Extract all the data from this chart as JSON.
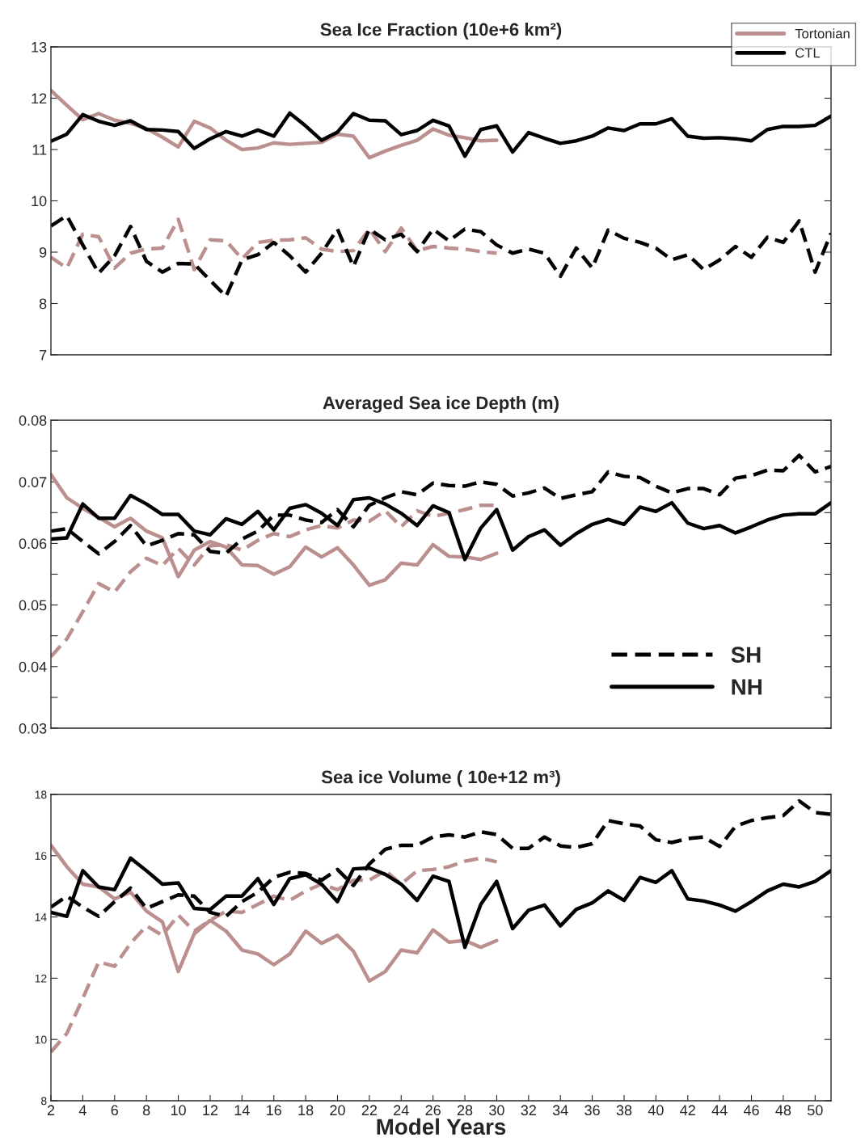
{
  "chart_data": [
    {
      "type": "line",
      "title": "Sea Ice Fraction (10e+6 km²)",
      "x": [
        2,
        3,
        4,
        5,
        6,
        7,
        8,
        9,
        10,
        11,
        12,
        13,
        14,
        15,
        16,
        17,
        18,
        19,
        20,
        21,
        22,
        23,
        24,
        25,
        26,
        27,
        28,
        29,
        30,
        31,
        32,
        33,
        34,
        35,
        36,
        37,
        38,
        39,
        40,
        41,
        42,
        43,
        44,
        45,
        46,
        47,
        48,
        49,
        50,
        51
      ],
      "xlim": [
        2,
        51
      ],
      "ylim": [
        7,
        13
      ],
      "yticks": [
        7,
        8,
        9,
        10,
        11,
        12,
        13
      ],
      "tick_labels": "y",
      "legend": "top right",
      "grid": false,
      "series": [
        {
          "name": "Tortonian",
          "color": "#bc8f8f",
          "line_style": "solid",
          "x": [
            2,
            3,
            4,
            5,
            6,
            7,
            8,
            9,
            10,
            11,
            12,
            13,
            14,
            15,
            16,
            17,
            18,
            19,
            20,
            21,
            22,
            23,
            24,
            25,
            26,
            27,
            28,
            29,
            30
          ],
          "values": [
            12.15,
            11.86,
            11.58,
            11.7,
            11.57,
            11.51,
            11.41,
            11.24,
            11.05,
            11.55,
            11.42,
            11.18,
            11.0,
            11.03,
            11.13,
            11.1,
            11.12,
            11.14,
            11.3,
            11.26,
            10.84,
            10.97,
            11.08,
            11.18,
            11.4,
            11.28,
            11.23,
            11.17,
            11.18
          ]
        },
        {
          "name": "CTL",
          "color": "#000000",
          "line_style": "solid",
          "values": [
            11.16,
            11.3,
            11.68,
            11.55,
            11.47,
            11.56,
            11.39,
            11.38,
            11.35,
            11.02,
            11.21,
            11.35,
            11.26,
            11.38,
            11.26,
            11.71,
            11.46,
            11.18,
            11.34,
            11.7,
            11.57,
            11.56,
            11.29,
            11.37,
            11.57,
            11.46,
            10.87,
            11.39,
            11.46,
            10.95,
            11.33,
            11.22,
            11.12,
            11.17,
            11.26,
            11.42,
            11.37,
            11.5,
            11.5,
            11.6,
            11.26,
            11.22,
            11.23,
            11.21,
            11.17,
            11.39,
            11.45,
            11.45,
            11.47,
            11.65
          ]
        },
        {
          "color": "#bc8f8f",
          "line_style": "dashed",
          "x": [
            2,
            3,
            4,
            5,
            6,
            7,
            8,
            9,
            10,
            11,
            12,
            13,
            14,
            15,
            16,
            17,
            18,
            19,
            20,
            21,
            22,
            23,
            24,
            25,
            26,
            27,
            28,
            29,
            30
          ],
          "values": [
            8.9,
            8.69,
            9.35,
            9.3,
            8.69,
            8.98,
            9.06,
            9.08,
            9.64,
            8.66,
            9.24,
            9.22,
            8.87,
            9.19,
            9.23,
            9.24,
            9.28,
            9.06,
            9.01,
            9.03,
            9.45,
            9.01,
            9.47,
            9.03,
            9.11,
            9.08,
            9.06,
            9.01,
            8.98
          ]
        },
        {
          "color": "#000000",
          "line_style": "dashed",
          "values": [
            9.51,
            9.71,
            9.14,
            8.59,
            8.93,
            9.5,
            8.82,
            8.61,
            8.78,
            8.77,
            8.45,
            8.14,
            8.85,
            8.95,
            9.19,
            8.93,
            8.61,
            8.98,
            9.45,
            8.72,
            9.45,
            9.24,
            9.35,
            9.01,
            9.45,
            9.22,
            9.45,
            9.4,
            9.14,
            8.98,
            9.06,
            8.98,
            8.53,
            9.08,
            8.69,
            9.43,
            9.27,
            9.19,
            9.08,
            8.85,
            8.95,
            8.66,
            8.85,
            9.11,
            8.9,
            9.29,
            9.19,
            9.61,
            8.61,
            9.37
          ]
        }
      ]
    },
    {
      "type": "line",
      "title": "Averaged Sea ice Depth (m)",
      "x": [
        2,
        3,
        4,
        5,
        6,
        7,
        8,
        9,
        10,
        11,
        12,
        13,
        14,
        15,
        16,
        17,
        18,
        19,
        20,
        21,
        22,
        23,
        24,
        25,
        26,
        27,
        28,
        29,
        30,
        31,
        32,
        33,
        34,
        35,
        36,
        37,
        38,
        39,
        40,
        41,
        42,
        43,
        44,
        45,
        46,
        47,
        48,
        49,
        50,
        51
      ],
      "xlim": [
        2,
        51
      ],
      "ylim": [
        0.03,
        0.08
      ],
      "yticks": [
        0.03,
        {
          "value": 0.035,
          "label": null
        },
        0.04,
        {
          "value": 0.045,
          "label": null
        },
        0.05,
        {
          "value": 0.055,
          "label": null
        },
        0.06,
        {
          "value": 0.065,
          "label": null
        },
        0.07,
        {
          "value": 0.075,
          "label": null
        },
        0.08
      ],
      "tick_labels": "y",
      "legend": "bottom right",
      "grid": false,
      "series": [
        {
          "color": "#bc8f8f",
          "line_style": "solid",
          "x": [
            2,
            3,
            4,
            5,
            6,
            7,
            8,
            9,
            10,
            11,
            12,
            13,
            14,
            15,
            16,
            17,
            18,
            19,
            20,
            21,
            22,
            23,
            24,
            25,
            26,
            27,
            28,
            29,
            30
          ],
          "values": [
            0.0712,
            0.0674,
            0.0657,
            0.0642,
            0.0627,
            0.0641,
            0.062,
            0.0609,
            0.0546,
            0.0589,
            0.0603,
            0.0594,
            0.0565,
            0.0564,
            0.055,
            0.0562,
            0.0594,
            0.0578,
            0.0593,
            0.0565,
            0.0532,
            0.0541,
            0.0568,
            0.0565,
            0.0598,
            0.0579,
            0.0578,
            0.0574,
            0.0584
          ]
        },
        {
          "color": "#bc8f8f",
          "line_style": "dashed",
          "x": [
            2,
            3,
            4,
            5,
            6,
            7,
            8,
            9,
            10,
            11,
            12,
            13,
            14,
            15,
            16,
            17,
            18,
            19,
            20,
            21,
            22,
            23,
            24,
            25,
            26,
            27,
            28,
            29,
            30
          ],
          "values": [
            0.0416,
            0.0445,
            0.0489,
            0.0535,
            0.0521,
            0.0554,
            0.0576,
            0.0564,
            0.0592,
            0.0565,
            0.0596,
            0.0598,
            0.0589,
            0.0605,
            0.0616,
            0.0611,
            0.0622,
            0.0629,
            0.0625,
            0.0638,
            0.0636,
            0.0653,
            0.0627,
            0.0653,
            0.0644,
            0.0649,
            0.0655,
            0.0662,
            0.0662
          ]
        },
        {
          "name": "SH",
          "color": "#000000",
          "line_style": "dashed",
          "values": [
            0.062,
            0.0624,
            0.0603,
            0.0583,
            0.0603,
            0.0629,
            0.0596,
            0.0605,
            0.0616,
            0.0614,
            0.0587,
            0.0584,
            0.0607,
            0.062,
            0.0646,
            0.0646,
            0.0638,
            0.0634,
            0.0655,
            0.0627,
            0.0662,
            0.0674,
            0.0684,
            0.0679,
            0.0698,
            0.0694,
            0.0693,
            0.07,
            0.0696,
            0.0677,
            0.0682,
            0.069,
            0.0673,
            0.0679,
            0.0684,
            0.0716,
            0.0709,
            0.0707,
            0.0693,
            0.0682,
            0.0689,
            0.0689,
            0.0679,
            0.0706,
            0.071,
            0.0719,
            0.0718,
            0.0743,
            0.0716,
            0.0725
          ]
        },
        {
          "name": "NH",
          "color": "#000000",
          "line_style": "solid",
          "values": [
            0.0607,
            0.0609,
            0.0664,
            0.0641,
            0.0641,
            0.0678,
            0.0664,
            0.0647,
            0.0647,
            0.062,
            0.0614,
            0.064,
            0.0631,
            0.0652,
            0.0622,
            0.0657,
            0.0663,
            0.0649,
            0.0629,
            0.0671,
            0.0674,
            0.0664,
            0.0649,
            0.0629,
            0.0661,
            0.065,
            0.0574,
            0.0625,
            0.0655,
            0.0589,
            0.0611,
            0.0622,
            0.0597,
            0.0616,
            0.0631,
            0.0639,
            0.0631,
            0.0659,
            0.0652,
            0.0666,
            0.0633,
            0.0624,
            0.0629,
            0.0617,
            0.0627,
            0.0638,
            0.0646,
            0.0648,
            0.0648,
            0.0666
          ]
        }
      ]
    },
    {
      "type": "line",
      "title": "Sea ice Volume ( 10e+12 m³)",
      "xlabel": "Model Years",
      "x": [
        2,
        3,
        4,
        5,
        6,
        7,
        8,
        9,
        10,
        11,
        12,
        13,
        14,
        15,
        16,
        17,
        18,
        19,
        20,
        21,
        22,
        23,
        24,
        25,
        26,
        27,
        28,
        29,
        30,
        31,
        32,
        33,
        34,
        35,
        36,
        37,
        38,
        39,
        40,
        41,
        42,
        43,
        44,
        45,
        46,
        47,
        48,
        49,
        50,
        51
      ],
      "xlim": [
        2,
        51
      ],
      "xticks": [
        2,
        4,
        6,
        8,
        10,
        12,
        14,
        16,
        18,
        20,
        22,
        24,
        26,
        28,
        30,
        32,
        34,
        36,
        38,
        40,
        42,
        44,
        46,
        48,
        50
      ],
      "ylim": [
        8,
        18
      ],
      "yticks": [
        8,
        10,
        12,
        14,
        16,
        18
      ],
      "grid": false,
      "series": [
        {
          "color": "#bc8f8f",
          "line_style": "solid",
          "x": [
            2,
            3,
            4,
            5,
            6,
            7,
            8,
            9,
            10,
            11,
            12,
            13,
            14,
            15,
            16,
            17,
            18,
            19,
            20,
            21,
            22,
            23,
            24,
            25,
            26,
            27,
            28,
            29,
            30
          ],
          "values": [
            16.34,
            15.64,
            15.07,
            14.98,
            14.59,
            14.81,
            14.19,
            13.84,
            12.22,
            13.45,
            13.89,
            13.54,
            12.92,
            12.79,
            12.44,
            12.79,
            13.54,
            13.14,
            13.4,
            12.88,
            11.91,
            12.22,
            12.92,
            12.83,
            13.58,
            13.18,
            13.23,
            13.01,
            13.23
          ]
        },
        {
          "color": "#bc8f8f",
          "line_style": "dashed",
          "x": [
            2,
            3,
            4,
            5,
            6,
            7,
            8,
            9,
            10,
            11,
            12,
            13,
            14,
            15,
            16,
            17,
            18,
            19,
            20,
            21,
            22,
            23,
            24,
            25,
            26,
            27,
            28,
            29,
            30
          ],
          "values": [
            9.59,
            10.2,
            11.34,
            12.53,
            12.39,
            13.14,
            13.71,
            13.4,
            14.06,
            13.54,
            13.89,
            14.19,
            14.15,
            14.41,
            14.68,
            14.54,
            14.85,
            15.07,
            14.89,
            15.2,
            15.2,
            15.51,
            15.07,
            15.51,
            15.55,
            15.64,
            15.82,
            15.92,
            15.8
          ]
        },
        {
          "color": "#000000",
          "line_style": "dashed",
          "values": [
            14.32,
            14.68,
            14.32,
            14.02,
            14.5,
            14.94,
            14.28,
            14.5,
            14.72,
            14.68,
            14.15,
            14.02,
            14.5,
            14.81,
            15.29,
            15.46,
            15.42,
            15.2,
            15.55,
            15.03,
            15.73,
            16.21,
            16.34,
            16.34,
            16.61,
            16.68,
            16.61,
            16.78,
            16.69,
            16.24,
            16.24,
            16.61,
            16.32,
            16.27,
            16.39,
            17.15,
            17.04,
            16.97,
            16.52,
            16.43,
            16.56,
            16.61,
            16.3,
            16.96,
            17.15,
            17.24,
            17.31,
            17.79,
            17.41,
            17.35
          ]
        },
        {
          "color": "#000000",
          "line_style": "solid",
          "values": [
            14.15,
            14.02,
            15.51,
            14.98,
            14.89,
            15.92,
            15.51,
            15.07,
            15.11,
            14.28,
            14.24,
            14.68,
            14.68,
            15.25,
            14.41,
            15.25,
            15.38,
            15.07,
            14.5,
            15.57,
            15.6,
            15.39,
            15.07,
            14.54,
            15.33,
            15.16,
            13.01,
            14.41,
            15.16,
            13.62,
            14.22,
            14.39,
            13.71,
            14.25,
            14.46,
            14.85,
            14.54,
            15.29,
            15.13,
            15.51,
            14.59,
            14.52,
            14.39,
            14.19,
            14.5,
            14.85,
            15.07,
            14.98,
            15.16,
            15.51
          ]
        }
      ]
    }
  ]
}
